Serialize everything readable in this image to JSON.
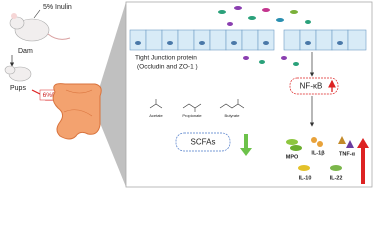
{
  "labels": {
    "inulin": "5% Inulin",
    "dam": "Dam",
    "pups": "Pups",
    "dss": "6%DSS"
  },
  "panel": {
    "tight_junction": "Tight Junction protein",
    "tight_junction_detail": "(Occludin and ZO-1 )",
    "nf_kb": "NF-κB",
    "scfa_names": [
      "Acetate",
      "Propionate",
      "Butyrate"
    ],
    "scfas": "SCFAs",
    "cytokines": [
      "MPO",
      "IL-1β",
      "TNF-α",
      "IL-10",
      "IL-22"
    ]
  }
}
